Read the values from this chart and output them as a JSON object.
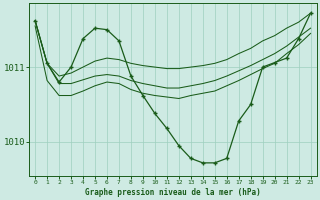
{
  "title": "Graphe pression niveau de la mer (hPa)",
  "bg_color": "#ceeae3",
  "line_color": "#1a5c1a",
  "grid_color": "#9ecfbf",
  "axis_color": "#1a5c1a",
  "x_ticks": [
    0,
    1,
    2,
    3,
    4,
    5,
    6,
    7,
    8,
    9,
    10,
    11,
    12,
    13,
    14,
    15,
    16,
    17,
    18,
    19,
    20,
    21,
    22,
    23
  ],
  "y_ticks": [
    1010,
    1011
  ],
  "ylim": [
    1009.55,
    1011.85
  ],
  "xlim": [
    -0.5,
    23.5
  ],
  "series": [
    {
      "x": [
        0,
        1,
        2,
        3,
        4,
        5,
        6,
        7,
        8,
        9,
        10,
        11,
        12,
        13,
        14,
        15,
        16,
        17,
        18,
        19,
        20,
        21,
        22,
        23
      ],
      "y": [
        1011.62,
        1011.05,
        1010.88,
        1010.92,
        1011.0,
        1011.08,
        1011.12,
        1011.1,
        1011.05,
        1011.02,
        1011.0,
        1010.98,
        1010.98,
        1011.0,
        1011.02,
        1011.05,
        1011.1,
        1011.18,
        1011.25,
        1011.35,
        1011.42,
        1011.52,
        1011.6,
        1011.72
      ],
      "marker": false
    },
    {
      "x": [
        0,
        1,
        2,
        3,
        4,
        5,
        6,
        7,
        8,
        9,
        10,
        11,
        12,
        13,
        14,
        15,
        16,
        17,
        18,
        19,
        20,
        21,
        22,
        23
      ],
      "y": [
        1011.62,
        1011.05,
        1010.78,
        1010.78,
        1010.83,
        1010.88,
        1010.9,
        1010.88,
        1010.82,
        1010.78,
        1010.75,
        1010.72,
        1010.72,
        1010.75,
        1010.78,
        1010.82,
        1010.88,
        1010.95,
        1011.02,
        1011.1,
        1011.18,
        1011.28,
        1011.4,
        1011.52
      ],
      "marker": false
    },
    {
      "x": [
        0,
        1,
        2,
        3,
        4,
        5,
        6,
        7,
        8,
        9,
        10,
        11,
        12,
        13,
        14,
        15,
        16,
        17,
        18,
        19,
        20,
        21,
        22,
        23
      ],
      "y": [
        1011.55,
        1010.82,
        1010.62,
        1010.62,
        1010.68,
        1010.75,
        1010.8,
        1010.78,
        1010.7,
        1010.65,
        1010.62,
        1010.6,
        1010.58,
        1010.62,
        1010.65,
        1010.68,
        1010.75,
        1010.82,
        1010.9,
        1010.98,
        1011.05,
        1011.18,
        1011.3,
        1011.45
      ],
      "marker": false
    },
    {
      "x": [
        0,
        1,
        2,
        3,
        4,
        5,
        6,
        7,
        8,
        9,
        10,
        11,
        12,
        13,
        14,
        15,
        16,
        17,
        18,
        19,
        20,
        21,
        22,
        23
      ],
      "y": [
        1011.62,
        1011.05,
        1010.8,
        1011.0,
        1011.38,
        1011.52,
        1011.5,
        1011.35,
        1010.88,
        1010.62,
        1010.38,
        1010.18,
        1009.95,
        1009.78,
        1009.72,
        1009.72,
        1009.78,
        1010.28,
        1010.5,
        1011.0,
        1011.06,
        1011.12,
        1011.38,
        1011.72
      ],
      "marker": true
    }
  ]
}
